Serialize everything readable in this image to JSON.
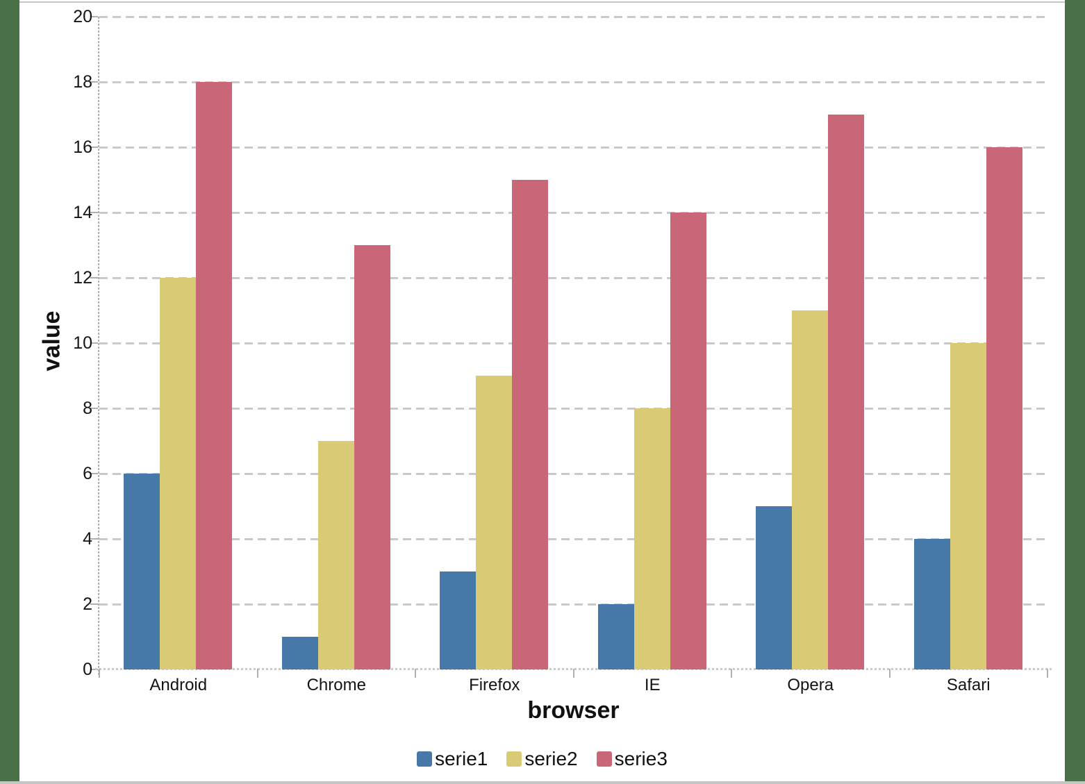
{
  "chart_data": {
    "type": "bar",
    "title": "",
    "xlabel": "browser",
    "ylabel": "value",
    "categories": [
      "Android",
      "Chrome",
      "Firefox",
      "IE",
      "Opera",
      "Safari"
    ],
    "series": [
      {
        "name": "serie1",
        "color": "#4678A8",
        "values": [
          6,
          1,
          3,
          2,
          5,
          4
        ]
      },
      {
        "name": "serie2",
        "color": "#D9CA76",
        "values": [
          12,
          7,
          9,
          8,
          11,
          10
        ]
      },
      {
        "name": "serie3",
        "color": "#C96677",
        "values": [
          18,
          13,
          15,
          14,
          17,
          16
        ]
      }
    ],
    "ylim": [
      0,
      20
    ],
    "ytick_step": 2,
    "ytick_labels": [
      "0",
      "2",
      "4",
      "6",
      "8",
      "10",
      "12",
      "14",
      "16",
      "18",
      "20"
    ],
    "grid": "horizontal-dashed",
    "legend_position": "bottom"
  },
  "frame": {
    "side_strip_color": "#487147",
    "bottom_edge_color": "#C3C6C2",
    "top_edge_color": "#C6C6C6",
    "gridline_color": "#C9C9C9",
    "axis_color": "#B0B0B0",
    "panel_color": "#FFFFFF"
  }
}
